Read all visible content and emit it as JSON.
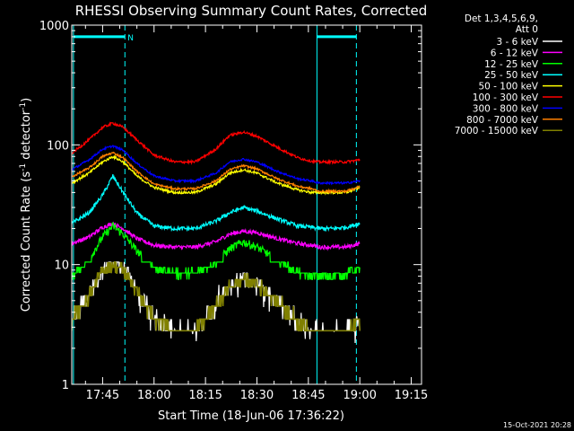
{
  "chart_data": {
    "type": "line",
    "title": "RHESSI Observing Summary Count Rates, Corrected",
    "ylabel_parts": [
      "Corrected Count Rate (s",
      "-1",
      " detector",
      "-1",
      ")"
    ],
    "xlabel": "Start Time (18-Jun-06 17:36:22)",
    "footer": "15-Oct-2021 20:28",
    "yscale": "log",
    "ylim": [
      1,
      1000
    ],
    "xlim_minutes_after_1736": [
      0,
      102
    ],
    "y_tick_labels": [
      "1",
      "10",
      "100",
      "1000"
    ],
    "x_tick_labels": [
      "17:45",
      "18:00",
      "18:15",
      "18:30",
      "18:45",
      "19:00",
      "19:15"
    ],
    "legend_header": [
      "Det 1,3,4,5,6,9,",
      "Att 0"
    ],
    "flag_label": "N",
    "overlays": {
      "color": "#00ffff",
      "solid_lines_min": [
        0.5,
        71.5
      ],
      "dashed_lines_min": [
        15.5,
        83.0
      ],
      "flag_bars_min": [
        [
          0.5,
          15.5
        ],
        [
          71.5,
          83.0
        ]
      ],
      "flag_bar_level": 800
    },
    "x": [
      0,
      5,
      9,
      12,
      15,
      19,
      24,
      30,
      36,
      42,
      46,
      50,
      54,
      60,
      66,
      70,
      72,
      76,
      80,
      84
    ],
    "series": [
      {
        "name": "3 - 6 keV",
        "color": "#ffffff",
        "values": [
          3.5,
          5.5,
          9,
          10.5,
          9.5,
          6,
          3.5,
          2.8,
          2.8,
          4.5,
          6.5,
          7.5,
          7,
          5,
          3.3,
          2.8,
          2.8,
          2.8,
          2.8,
          3.5
        ],
        "noise": 0.15
      },
      {
        "name": "6 - 12 keV",
        "color": "#ff00ff",
        "values": [
          15,
          17,
          20.5,
          22,
          20,
          16.5,
          14.5,
          14,
          14,
          15.5,
          18,
          19,
          18.5,
          16.5,
          15,
          14.5,
          14,
          14,
          14,
          15
        ],
        "noise": 0.04
      },
      {
        "name": "12 - 25 keV",
        "color": "#00ff00",
        "values": [
          8,
          11,
          17,
          21,
          18,
          13,
          9.5,
          8.5,
          8.5,
          10.5,
          13.5,
          15.5,
          14,
          11,
          8.5,
          8,
          8,
          8,
          8.5,
          9.5
        ],
        "noise": 0.08
      },
      {
        "name": "25 - 50 keV",
        "color": "#00ffff",
        "values": [
          22,
          27,
          38,
          55,
          40,
          27,
          21,
          20,
          20,
          23,
          27,
          30,
          28,
          24,
          21,
          20.5,
          20,
          20,
          20.5,
          22
        ],
        "noise": 0.04
      },
      {
        "name": "50 - 100 keV",
        "color": "#ffff00",
        "values": [
          48,
          58,
          72,
          80,
          72,
          55,
          44,
          40,
          40,
          47,
          58,
          62,
          58,
          48,
          42,
          40,
          40,
          40,
          40,
          44
        ],
        "noise": 0.025
      },
      {
        "name": "100 - 300 keV",
        "color": "#ff0000",
        "values": [
          85,
          110,
          140,
          152,
          140,
          110,
          82,
          72,
          72,
          92,
          120,
          128,
          118,
          95,
          78,
          73,
          72,
          72,
          72,
          75
        ],
        "noise": 0.025
      },
      {
        "name": "300 - 800 keV",
        "color": "#0000ff",
        "values": [
          62,
          75,
          92,
          98,
          90,
          70,
          55,
          50,
          50,
          58,
          72,
          76,
          72,
          60,
          52,
          50,
          48,
          48,
          48,
          50
        ],
        "noise": 0.02
      },
      {
        "name": "800 - 7000 keV",
        "color": "#ff8000",
        "values": [
          54,
          64,
          80,
          86,
          78,
          60,
          47,
          43,
          43,
          50,
          62,
          67,
          63,
          52,
          45,
          43,
          41,
          41,
          41,
          45
        ],
        "noise": 0.02
      },
      {
        "name": "7000 - 15000 keV",
        "color": "#808000",
        "values": [
          3.5,
          5.5,
          9,
          10,
          9,
          6,
          3.5,
          2.8,
          2.8,
          4.5,
          6.5,
          7.5,
          7,
          5,
          3.3,
          2.8,
          2.8,
          2.8,
          2.8,
          3.5
        ],
        "noise": 0.12
      }
    ]
  }
}
